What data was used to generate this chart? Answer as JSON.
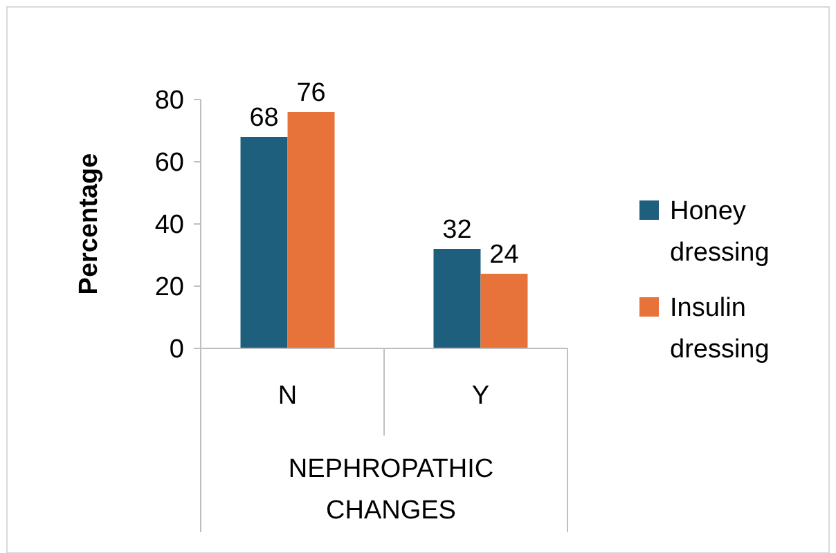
{
  "chart_data": {
    "type": "bar",
    "categories": [
      "N",
      "Y"
    ],
    "xlabel": "NEPHROPATHIC CHANGES",
    "ylabel": "Percentage",
    "series": [
      {
        "name": "Honey dressing",
        "color": "#1e5f7e",
        "values": [
          68,
          32
        ]
      },
      {
        "name": "Insulin dressing",
        "color": "#e8733a",
        "values": [
          76,
          24
        ]
      }
    ],
    "ylim": [
      0,
      80
    ],
    "yticks": [
      0,
      20,
      40,
      60,
      80
    ],
    "data_labels": true,
    "legend": "right",
    "grid": false
  }
}
